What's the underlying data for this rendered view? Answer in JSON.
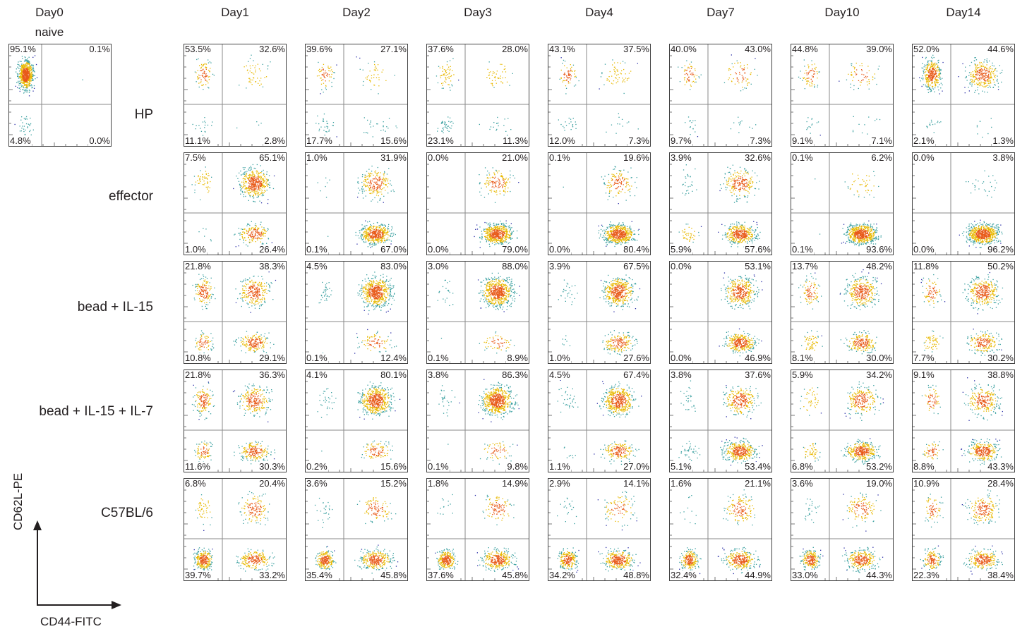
{
  "chart_data": {
    "type": "scatter",
    "subtype": "flow-cytometry-density-plot-grid",
    "xlabel": "CD44-FITC",
    "ylabel": "CD62L-PE",
    "quadrant_order": [
      "top-left",
      "top-right",
      "bottom-left",
      "bottom-right"
    ],
    "naive": {
      "column": "Day0",
      "label": "naive",
      "quadrants": [
        "95.1%",
        "0.1%",
        "4.8%",
        "0.0%"
      ]
    },
    "days": [
      "Day1",
      "Day2",
      "Day3",
      "Day4",
      "Day7",
      "Day10",
      "Day14"
    ],
    "rows": [
      {
        "label": "HP",
        "panels": [
          [
            "53.5%",
            "32.6%",
            "11.1%",
            "2.8%"
          ],
          [
            "39.6%",
            "27.1%",
            "17.7%",
            "15.6%"
          ],
          [
            "37.6%",
            "28.0%",
            "23.1%",
            "11.3%"
          ],
          [
            "43.1%",
            "37.5%",
            "12.0%",
            "7.3%"
          ],
          [
            "40.0%",
            "43.0%",
            "9.7%",
            "7.3%"
          ],
          [
            "44.8%",
            "39.0%",
            "9.1%",
            "7.1%"
          ],
          [
            "52.0%",
            "44.6%",
            "2.1%",
            "1.3%"
          ]
        ]
      },
      {
        "label": "effector",
        "panels": [
          [
            "7.5%",
            "65.1%",
            "1.0%",
            "26.4%"
          ],
          [
            "1.0%",
            "31.9%",
            "0.1%",
            "67.0%"
          ],
          [
            "0.0%",
            "21.0%",
            "0.0%",
            "79.0%"
          ],
          [
            "0.1%",
            "19.6%",
            "0.0%",
            "80.4%"
          ],
          [
            "3.9%",
            "32.6%",
            "5.9%",
            "57.6%"
          ],
          [
            "0.1%",
            "6.2%",
            "0.1%",
            "93.6%"
          ],
          [
            "0.0%",
            "3.8%",
            "0.0%",
            "96.2%"
          ]
        ]
      },
      {
        "label": "bead + IL-15",
        "panels": [
          [
            "21.8%",
            "38.3%",
            "10.8%",
            "29.1%"
          ],
          [
            "4.5%",
            "83.0%",
            "0.1%",
            "12.4%"
          ],
          [
            "3.0%",
            "88.0%",
            "0.1%",
            "8.9%"
          ],
          [
            "3.9%",
            "67.5%",
            "1.0%",
            "27.6%"
          ],
          [
            "0.0%",
            "53.1%",
            "0.0%",
            "46.9%"
          ],
          [
            "13.7%",
            "48.2%",
            "8.1%",
            "30.0%"
          ],
          [
            "11.8%",
            "50.2%",
            "7.7%",
            "30.2%"
          ]
        ]
      },
      {
        "label": "bead + IL-15 + IL-7",
        "panels": [
          [
            "21.8%",
            "36.3%",
            "11.6%",
            "30.3%"
          ],
          [
            "4.1%",
            "80.1%",
            "0.2%",
            "15.6%"
          ],
          [
            "3.8%",
            "86.3%",
            "0.1%",
            "9.8%"
          ],
          [
            "4.5%",
            "67.4%",
            "1.1%",
            "27.0%"
          ],
          [
            "3.8%",
            "37.6%",
            "5.1%",
            "53.4%"
          ],
          [
            "5.9%",
            "34.2%",
            "6.8%",
            "53.2%"
          ],
          [
            "9.1%",
            "38.8%",
            "8.8%",
            "43.3%"
          ]
        ]
      },
      {
        "label": "C57BL/6",
        "panels": [
          [
            "6.8%",
            "20.4%",
            "39.7%",
            "33.2%"
          ],
          [
            "3.6%",
            "15.2%",
            "35.4%",
            "45.8%"
          ],
          [
            "1.8%",
            "14.9%",
            "37.6%",
            "45.8%"
          ],
          [
            "2.9%",
            "14.1%",
            "34.2%",
            "48.8%"
          ],
          [
            "1.6%",
            "21.1%",
            "32.4%",
            "44.9%"
          ],
          [
            "3.6%",
            "19.0%",
            "33.0%",
            "44.3%"
          ],
          [
            "10.9%",
            "28.4%",
            "22.3%",
            "38.4%"
          ]
        ]
      }
    ]
  },
  "colors": {
    "text": "#231f20",
    "frame": "#444444",
    "gate_line": "#8a8a8a",
    "density_low": "#2b2fa8",
    "density_mid": "#3aa0a0",
    "density_high": "#e8b800",
    "density_peak": "#e85a1a"
  }
}
